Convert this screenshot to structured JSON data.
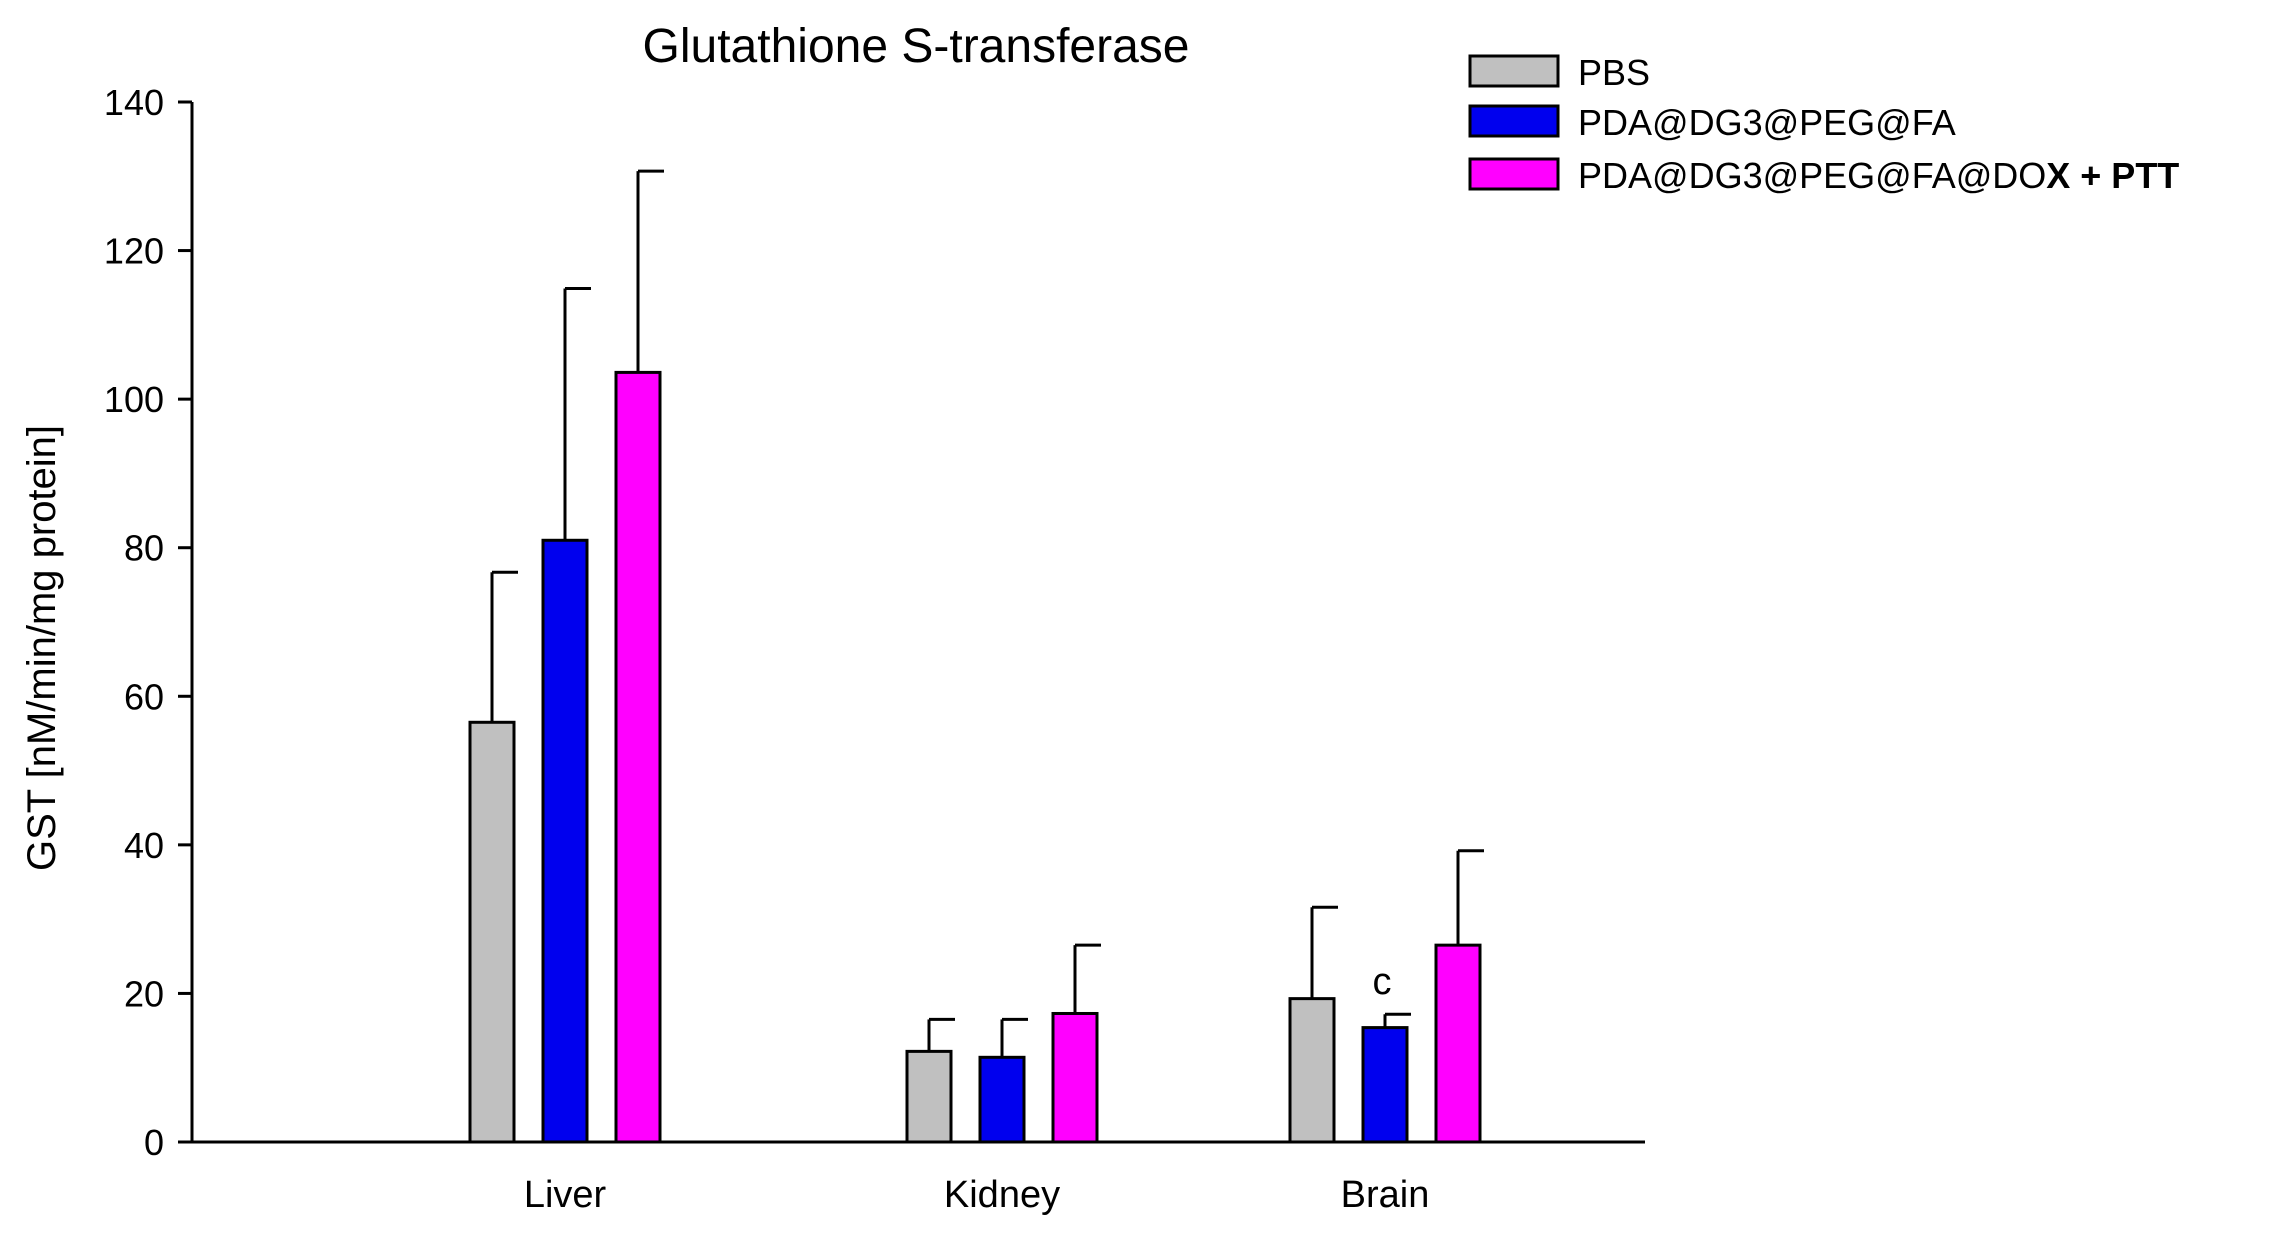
{
  "chart_data": {
    "type": "bar",
    "title": "Glutathione S-transferase",
    "ylabel": "GST [nM/min/mg protein]",
    "xlabel": "",
    "ylim": [
      0,
      140
    ],
    "yticks": [
      0,
      20,
      40,
      60,
      80,
      100,
      120,
      140
    ],
    "categories": [
      "Liver",
      "Kidney",
      "Brain"
    ],
    "series": [
      {
        "name": "PBS",
        "color": "#c0c0c0",
        "values": [
          56.5,
          12.2,
          19.3
        ],
        "errors": [
          20.2,
          4.3,
          12.3
        ],
        "annotations": [
          "",
          "",
          ""
        ]
      },
      {
        "name": "PDA@DG3@PEG@FA",
        "color": "#0000ee",
        "values": [
          81.0,
          11.4,
          15.4
        ],
        "errors": [
          33.9,
          5.1,
          1.8
        ],
        "annotations": [
          "",
          "",
          "c"
        ]
      },
      {
        "name": "PDA@DG3@PEG@FA@DOX + PTT",
        "color": "#ff00ff",
        "values": [
          103.6,
          17.3,
          26.5
        ],
        "errors": [
          27.1,
          9.2,
          12.7
        ],
        "annotations": [
          "",
          "",
          ""
        ]
      }
    ],
    "legend_position": "top-right",
    "legend_label_parts": [
      {
        "normal": "PBS",
        "bold": ""
      },
      {
        "normal": "PDA@DG3@PEG@FA",
        "bold": ""
      },
      {
        "normal": "PDA@DG3@PEG@FA@DO",
        "bold": "X + PTT"
      }
    ],
    "grid": false
  }
}
